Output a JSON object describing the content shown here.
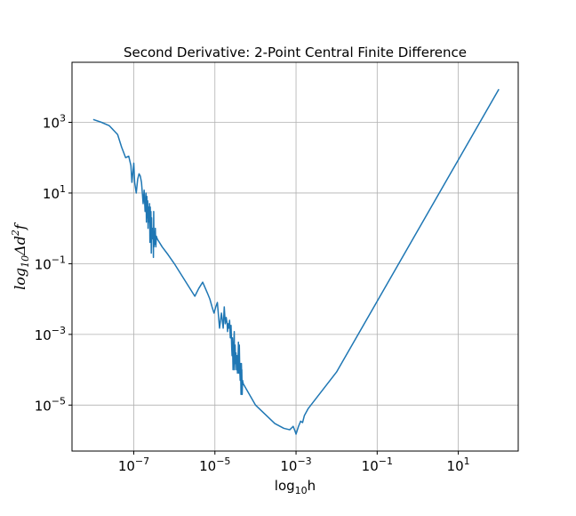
{
  "chart_data": {
    "type": "line",
    "title": "Second Derivative: 2-Point Central Finite Difference",
    "xlabel": {
      "base": "log",
      "sub": "10",
      "rest": "h"
    },
    "ylabel": {
      "base": "log",
      "sub": "10",
      "rest": "Δd",
      "sup": "2",
      "tail": "f"
    },
    "xscale": "log",
    "yscale": "log",
    "xlim": [
      3e-09,
      300
    ],
    "ylim": [
      5e-07,
      50000.0
    ],
    "grid": true,
    "xticks": [
      {
        "value": 1e-07,
        "base": "10",
        "exp": "−7"
      },
      {
        "value": 1e-05,
        "base": "10",
        "exp": "−5"
      },
      {
        "value": 0.001,
        "base": "10",
        "exp": "−3"
      },
      {
        "value": 0.1,
        "base": "10",
        "exp": "−1"
      },
      {
        "value": 10,
        "base": "10",
        "exp": "1"
      }
    ],
    "yticks": [
      {
        "value": 1e-05,
        "base": "10",
        "exp": "−5"
      },
      {
        "value": 0.001,
        "base": "10",
        "exp": "−3"
      },
      {
        "value": 0.1,
        "base": "10",
        "exp": "−1"
      },
      {
        "value": 10,
        "base": "10",
        "exp": "1"
      },
      {
        "value": 1000,
        "base": "10",
        "exp": "3"
      }
    ],
    "series": [
      {
        "color": "#1f77b4",
        "x": [
          1e-08,
          1.6e-08,
          2.5e-08,
          4e-08,
          5e-08,
          6.3e-08,
          7.5e-08,
          8.5e-08,
          9e-08,
          1e-07,
          1.05e-07,
          1.15e-07,
          1.25e-07,
          1.35e-07,
          1.45e-07,
          1.55e-07,
          1.65e-07,
          1.7e-07,
          1.8e-07,
          1.9e-07,
          2e-07,
          2.05e-07,
          2.1e-07,
          2.15e-07,
          2.2e-07,
          2.25e-07,
          2.3e-07,
          2.35e-07,
          2.4e-07,
          2.45e-07,
          2.5e-07,
          2.55e-07,
          2.6e-07,
          2.65e-07,
          2.7e-07,
          2.75e-07,
          2.8e-07,
          2.9e-07,
          3e-07,
          3.05e-07,
          3.1e-07,
          3.15e-07,
          3.2e-07,
          3.3e-07,
          3.4e-07,
          3.5e-07,
          3.6e-07,
          3.8e-07,
          5e-07,
          7e-07,
          1e-06,
          3.2e-06,
          4e-06,
          5e-06,
          6.5e-06,
          7.5e-06,
          8.5e-06,
          9.5e-06,
          1.05e-05,
          1.15e-05,
          1.3e-05,
          1.45e-05,
          1.6e-05,
          1.7e-05,
          1.8e-05,
          1.9e-05,
          2e-05,
          2.05e-05,
          2.1e-05,
          2.2e-05,
          2.3e-05,
          2.4e-05,
          2.5e-05,
          2.6e-05,
          2.65e-05,
          2.7e-05,
          2.8e-05,
          2.9e-05,
          3e-05,
          3.05e-05,
          3.15e-05,
          3.25e-05,
          3.3e-05,
          3.4e-05,
          3.5e-05,
          3.6e-05,
          3.7e-05,
          3.8e-05,
          3.9e-05,
          4e-05,
          4.1e-05,
          4.2e-05,
          4.3e-05,
          4.4e-05,
          4.5e-05,
          4.55e-05,
          4.6e-05,
          4.7e-05,
          4.8e-05,
          5e-05,
          0.0001,
          0.0003,
          0.0005,
          0.0007,
          0.00085,
          0.00095,
          0.001,
          0.00115,
          0.0013,
          0.00145,
          0.0016,
          0.002,
          0.01,
          0.1,
          1.0,
          10,
          100
        ],
        "y": [
          1200,
          1000,
          800,
          450,
          200,
          100,
          110,
          60,
          20,
          70,
          20,
          10,
          25,
          35,
          30,
          20,
          8,
          5,
          12,
          3,
          10,
          1.5,
          8,
          2,
          6,
          1,
          4,
          3,
          1.5,
          5,
          0.4,
          4,
          0.8,
          3,
          0.2,
          2,
          0.5,
          1,
          0.5,
          0.15,
          3,
          0.3,
          0.8,
          0.35,
          1,
          0.3,
          0.6,
          0.5,
          0.3,
          0.18,
          0.1,
          0.012,
          0.02,
          0.03,
          0.015,
          0.01,
          0.006,
          0.004,
          0.006,
          0.008,
          0.0015,
          0.004,
          0.0015,
          0.006,
          0.002,
          0.003,
          0.002,
          0.0012,
          0.002,
          0.0015,
          0.0025,
          0.0008,
          0.0018,
          0.0004,
          0.00025,
          0.0008,
          0.0001,
          0.00045,
          0.0012,
          0.0001,
          0.0005,
          0.00015,
          0.0003,
          0.0001,
          0.00025,
          8e-05,
          0.00015,
          0.0006,
          8e-05,
          0.0005,
          0.0001,
          5e-05,
          0.00015,
          2e-05,
          0.00015,
          9e-05,
          0.0001,
          2e-05,
          5e-05,
          4e-05,
          1e-05,
          3e-06,
          2.2e-06,
          2e-06,
          2.5e-06,
          1.8e-06,
          1.5e-06,
          2.5e-06,
          3.5e-06,
          3.2e-06,
          5e-06,
          8e-06,
          8.66e-05,
          0.00866,
          0.866,
          86.6,
          8660
        ]
      }
    ]
  }
}
